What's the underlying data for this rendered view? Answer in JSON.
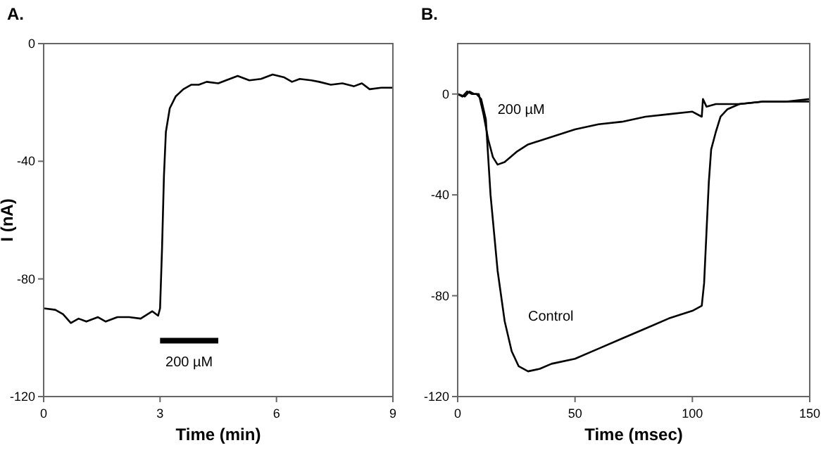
{
  "chart_data": [
    {
      "type": "line",
      "title": "A.",
      "xlabel": "Time (min)",
      "ylabel": "I (nA)",
      "xlim": [
        0,
        9
      ],
      "ylim": [
        -120,
        0
      ],
      "xticks": [
        0,
        3,
        6,
        9
      ],
      "yticks": [
        -120,
        -80,
        -40,
        0
      ],
      "series": [
        {
          "color": "#000000",
          "x": [
            0,
            0.3,
            0.5,
            0.7,
            0.9,
            1.1,
            1.4,
            1.6,
            1.9,
            2.2,
            2.5,
            2.8,
            2.95,
            3.0,
            3.05,
            3.1,
            3.15,
            3.25,
            3.4,
            3.6,
            3.8,
            4.0,
            4.2,
            4.5,
            4.7,
            5.0,
            5.3,
            5.6,
            5.9,
            6.2,
            6.4,
            6.6,
            6.9,
            7.1,
            7.4,
            7.7,
            8.0,
            8.2,
            8.4,
            8.7,
            9
          ],
          "values": [
            -90,
            -90.5,
            -92,
            -95,
            -93.5,
            -94.5,
            -93,
            -94.5,
            -93,
            -93,
            -93.5,
            -91,
            -92.5,
            -90,
            -70,
            -45,
            -30,
            -22,
            -18,
            -15.5,
            -14,
            -14,
            -13,
            -13.5,
            -12.5,
            -11,
            -12.5,
            -12,
            -10.5,
            -11.5,
            -13,
            -12,
            -12.5,
            -13,
            -14,
            -13.5,
            -14.5,
            -13.5,
            -15.5,
            -15,
            -15
          ]
        },
        {
          "name": "200 µM",
          "color": "#000000",
          "x": [
            3,
            4.5
          ],
          "values": [
            -101,
            -101
          ]
        }
      ]
    },
    {
      "type": "line",
      "title": "B.",
      "xlabel": "Time (msec)",
      "xlim": [
        0,
        150
      ],
      "ylim": [
        -120,
        20
      ],
      "xticks": [
        0,
        50,
        100,
        150
      ],
      "yticks": [
        -120,
        -80,
        -40,
        0
      ],
      "series": [
        {
          "name": "Control",
          "color": "#000000",
          "x": [
            0,
            2,
            4,
            6,
            8,
            10,
            12,
            14,
            17,
            20,
            23,
            26,
            30,
            35,
            40,
            50,
            60,
            70,
            80,
            90,
            100,
            104,
            105,
            106,
            107,
            108,
            110,
            112,
            115,
            120,
            130,
            140,
            150
          ],
          "values": [
            0,
            -1,
            1,
            0,
            0,
            -2,
            -10,
            -40,
            -70,
            -90,
            -102,
            -108,
            -110,
            -109,
            -107,
            -105,
            -101,
            -97,
            -93,
            -89,
            -86,
            -84,
            -75,
            -55,
            -35,
            -22,
            -15,
            -9,
            -6,
            -4,
            -3,
            -3,
            -2
          ]
        },
        {
          "name": "200 µM",
          "color": "#000000",
          "x": [
            0,
            3,
            5,
            7,
            9,
            11,
            13,
            15,
            17,
            20,
            25,
            30,
            40,
            50,
            60,
            70,
            80,
            90,
            100,
            104,
            104.5,
            106,
            110,
            120,
            130,
            140,
            150
          ],
          "values": [
            0,
            -1,
            1,
            0,
            0,
            -8,
            -18,
            -25,
            -28,
            -27,
            -23,
            -20,
            -17,
            -14,
            -12,
            -11,
            -9,
            -8,
            -7,
            -9,
            -2,
            -5,
            -4,
            -4,
            -3,
            -3,
            -3
          ]
        }
      ]
    }
  ]
}
